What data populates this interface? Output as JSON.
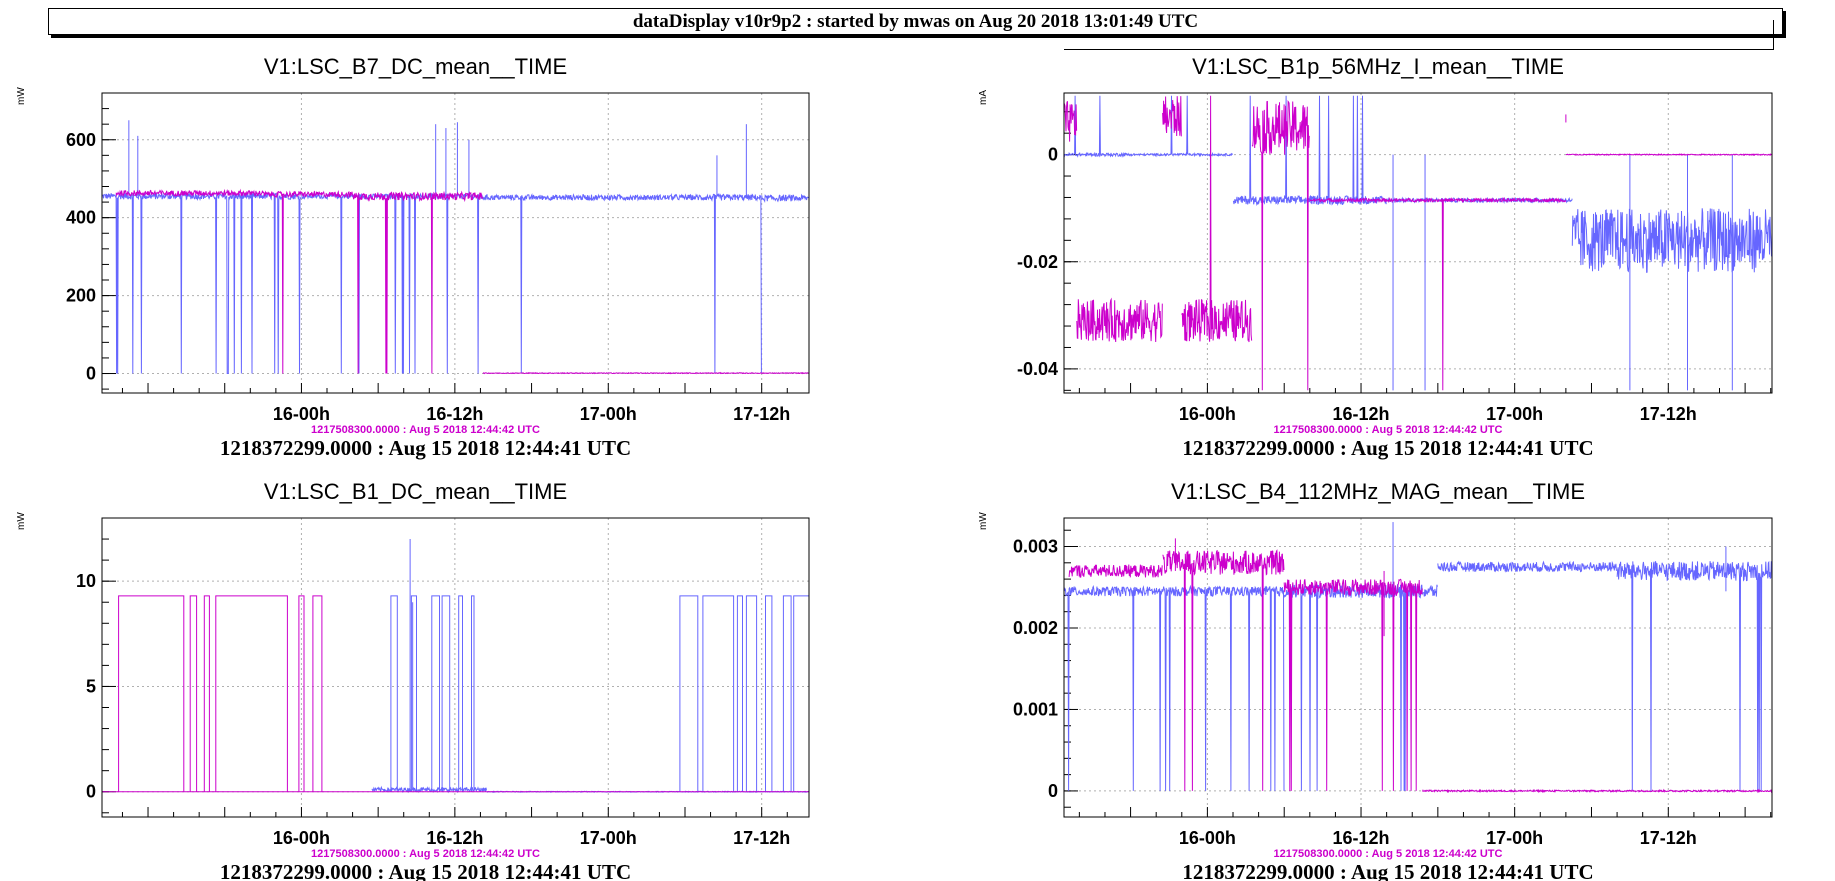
{
  "header": {
    "banner": "dataDisplay v10r9p2 : started by mwas on Aug 20 2018 13:01:49 UTC"
  },
  "colors": {
    "series_blue": "#6666ff",
    "series_magenta": "#cc00cc",
    "grid": "#b0b0b0",
    "axis": "#000000"
  },
  "chart_data": [
    {
      "type": "line",
      "title": "V1:LSC_B7_DC_mean__TIME",
      "ylabel": "mW",
      "xticks": [
        "16-00h",
        "16-12h",
        "17-00h",
        "17-12h"
      ],
      "xlim_hours": [
        -15.6,
        39.7
      ],
      "ylim": [
        -50,
        720
      ],
      "yticks": [
        0,
        200,
        400,
        600
      ],
      "grid": true,
      "time_offset": "1217508300.0000 : Aug  5 2018 12:44:42 UTC",
      "time_start": "1218372299.0000 : Aug 15 2018 12:44:41 UTC",
      "series": [
        {
          "color": "#6666ff",
          "segments": [
            {
              "x0": -15.6,
              "x1": 0.0,
              "base": 455,
              "noise": 8,
              "drop": 0.35,
              "low": 0
            },
            {
              "x0": 0.0,
              "x1": 3.0,
              "base": 455,
              "noise": 6,
              "drop": 0.18,
              "low": 0
            },
            {
              "x0": 3.0,
              "x1": 9.0,
              "base": 455,
              "noise": 6,
              "drop": 0.55,
              "low": 0
            },
            {
              "x0": 9.0,
              "x1": 14.0,
              "base": 455,
              "noise": 6,
              "drop": 0.2,
              "low": 0
            },
            {
              "x0": 14.0,
              "x1": 31.0,
              "base": 452,
              "noise": 7,
              "drop": 0.02,
              "low": 0
            },
            {
              "x0": 31.0,
              "x1": 36.0,
              "base": 452,
              "noise": 8,
              "drop": 0.5,
              "low": 0
            },
            {
              "x0": 36.0,
              "x1": 39.7,
              "base": 450,
              "noise": 8,
              "drop": 0.05,
              "low": 0
            }
          ],
          "spikes": [
            {
              "x": -13.5,
              "y": 650
            },
            {
              "x": -12.8,
              "y": 610
            },
            {
              "x": 10.5,
              "y": 640
            },
            {
              "x": 11.3,
              "y": 630
            },
            {
              "x": 12.2,
              "y": 645
            },
            {
              "x": 13.1,
              "y": 600
            },
            {
              "x": 32.5,
              "y": 560
            },
            {
              "x": 34.8,
              "y": 640
            }
          ]
        },
        {
          "color": "#cc00cc",
          "segments": [
            {
              "x0": -14.5,
              "x1": -3.0,
              "base": 463,
              "noise": 7,
              "drop": 0.02,
              "low": 0
            },
            {
              "x0": -3.0,
              "x1": 4.0,
              "base": 460,
              "noise": 7,
              "drop": 0.3,
              "low": 0
            },
            {
              "x0": 4.0,
              "x1": 14.2,
              "base": 455,
              "noise": 10,
              "drop": 0.25,
              "low": 0
            },
            {
              "x0": 14.2,
              "x1": 39.7,
              "base": 1,
              "noise": 1,
              "drop": 0,
              "low": 0
            }
          ],
          "spikes": []
        }
      ]
    },
    {
      "type": "line",
      "title": "V1:LSC_B1p_56MHz_I_mean__TIME",
      "ylabel": "mA",
      "xticks": [
        "16-00h",
        "16-12h",
        "17-00h",
        "17-12h"
      ],
      "xlim_hours": [
        -11.2,
        44.1
      ],
      "ylim": [
        -0.0445,
        0.0115
      ],
      "yticks": [
        0,
        -0.02,
        -0.04
      ],
      "ytick_labels": [
        "0",
        "-0.02",
        "-0.04"
      ],
      "grid": true,
      "time_offset": "1217508300.0000 : Aug  5 2018 12:44:42 UTC",
      "time_start": "1218372299.0000 : Aug 15 2018 12:44:41 UTC",
      "series": [
        {
          "color": "#6666ff",
          "segments": [
            {
              "x0": -11.2,
              "x1": -6.0,
              "base": 0.0,
              "noise": 0.0003,
              "drop": 0.3,
              "low": 0.011
            },
            {
              "x0": -6.0,
              "x1": 2.0,
              "base": 0.0,
              "noise": 0.0002,
              "drop": 0.05,
              "low": 0.011
            },
            {
              "x0": 2.0,
              "x1": 14.0,
              "base": -0.0085,
              "noise": 0.0008,
              "drop": 0.25,
              "low": 0.011
            },
            {
              "x0": 14.0,
              "x1": 28.5,
              "base": -0.0085,
              "noise": 0.0004,
              "drop": 0.05,
              "low": -0.04
            },
            {
              "x0": 28.5,
              "x1": 44.1,
              "base": -0.016,
              "noise": 0.006,
              "drop": 0.1,
              "low": 0.011
            }
          ],
          "spikes": [
            {
              "x": 14.5,
              "y": -0.044
            },
            {
              "x": 17.0,
              "y": -0.044
            },
            {
              "x": 33.0,
              "y": -0.044
            },
            {
              "x": 37.5,
              "y": -0.044
            },
            {
              "x": 41.0,
              "y": -0.044
            }
          ]
        },
        {
          "color": "#cc00cc",
          "segments": [
            {
              "x0": -11.2,
              "x1": -10.2,
              "base": 0.006,
              "noise": 0.004,
              "drop": 0.2,
              "low": -0.04
            },
            {
              "x0": -10.2,
              "x1": -3.5,
              "base": -0.031,
              "noise": 0.004,
              "drop": 0.02,
              "low": 0.011
            },
            {
              "x0": -3.5,
              "x1": -2.0,
              "base": 0.007,
              "noise": 0.004,
              "drop": 0.3,
              "low": -0.044
            },
            {
              "x0": -2.0,
              "x1": 3.5,
              "base": -0.031,
              "noise": 0.004,
              "drop": 0.02,
              "low": 0.011
            },
            {
              "x0": 3.5,
              "x1": 8.0,
              "base": 0.005,
              "noise": 0.005,
              "drop": 0.3,
              "low": -0.044
            },
            {
              "x0": 8.0,
              "x1": 28.0,
              "base": -0.0085,
              "noise": 0.0003,
              "drop": 0.03,
              "low": -0.044
            },
            {
              "x0": 28.0,
              "x1": 44.1,
              "base": 0.0,
              "noise": 0.0001,
              "drop": 0,
              "low": 0
            }
          ],
          "spikes": [
            {
              "x": 28.0,
              "y": 0.0075
            }
          ]
        }
      ]
    },
    {
      "type": "line",
      "title": "V1:LSC_B1_DC_mean__TIME",
      "ylabel": "mW",
      "xticks": [
        "16-00h",
        "16-12h",
        "17-00h",
        "17-12h"
      ],
      "xlim_hours": [
        -15.6,
        39.7
      ],
      "ylim": [
        -1.2,
        13.0
      ],
      "yticks": [
        0,
        5,
        10
      ],
      "grid": true,
      "time_offset": "1217508300.0000 : Aug  5 2018 12:44:42 UTC",
      "time_start": "1218372299.0000 : Aug 15 2018 12:44:41 UTC",
      "series": [
        {
          "color": "#6666ff",
          "segments": [
            {
              "x0": 5.5,
              "x1": 8.0,
              "base": 0.1,
              "noise": 0.1,
              "drop": 0,
              "low": 0
            },
            {
              "x0": 8.0,
              "x1": 14.5,
              "base": 0.1,
              "noise": 0.1,
              "drop": 0,
              "low": 0
            },
            {
              "x0": 14.5,
              "x1": 39.7,
              "base": 0.0,
              "noise": 0.02,
              "drop": 0,
              "low": 0
            }
          ],
          "square": [
            {
              "x0": 7.0,
              "x1": 7.5
            },
            {
              "x0": 8.6,
              "x1": 9.0
            },
            {
              "x0": 10.2,
              "x1": 10.8
            },
            {
              "x0": 11.0,
              "x1": 11.6
            },
            {
              "x0": 12.3,
              "x1": 12.6
            },
            {
              "x0": 13.3,
              "x1": 13.5
            },
            {
              "x0": 29.6,
              "x1": 31.0
            },
            {
              "x0": 31.4,
              "x1": 33.8
            },
            {
              "x0": 34.1,
              "x1": 34.5
            },
            {
              "x0": 34.8,
              "x1": 35.6
            },
            {
              "x0": 36.3,
              "x1": 36.8
            },
            {
              "x0": 37.7,
              "x1": 38.3
            },
            {
              "x0": 38.5,
              "x1": 39.7
            }
          ],
          "high": 9.3,
          "spikes": [
            {
              "x": 8.5,
              "y": 12.0
            },
            {
              "x": 8.7,
              "y": 9.0
            }
          ]
        },
        {
          "color": "#cc00cc",
          "segments": [
            {
              "x0": -15.6,
              "x1": 39.7,
              "base": 0.0,
              "noise": 0.0,
              "drop": 0,
              "low": 0
            }
          ],
          "square": [
            {
              "x0": -14.3,
              "x1": -9.2
            },
            {
              "x0": -8.7,
              "x1": -8.2
            },
            {
              "x0": -7.6,
              "x1": -7.2
            },
            {
              "x0": -6.7,
              "x1": -1.1
            },
            {
              "x0": -0.2,
              "x1": 0.2
            },
            {
              "x0": 0.9,
              "x1": 1.6
            }
          ],
          "high": 9.3,
          "spikes": []
        }
      ]
    },
    {
      "type": "line",
      "title": "V1:LSC_B4_112MHz_MAG_mean__TIME",
      "ylabel": "mW",
      "xticks": [
        "16-00h",
        "16-12h",
        "17-00h",
        "17-12h"
      ],
      "xlim_hours": [
        -11.2,
        44.1
      ],
      "ylim": [
        -0.00032,
        0.00335
      ],
      "yticks": [
        0,
        0.001,
        0.002,
        0.003
      ],
      "ytick_labels": [
        "0",
        "0.001",
        "0.002",
        "0.003"
      ],
      "grid": true,
      "time_offset": "1217508300.0000 : Aug  5 2018 12:44:42 UTC",
      "time_start": "1218372299.0000 : Aug 15 2018 12:44:41 UTC",
      "series": [
        {
          "color": "#6666ff",
          "segments": [
            {
              "x0": -11.2,
              "x1": 6.0,
              "base": 0.00245,
              "noise": 6e-05,
              "drop": 0.25,
              "low": 0
            },
            {
              "x0": 6.0,
              "x1": 18.0,
              "base": 0.00245,
              "noise": 8e-05,
              "drop": 0.35,
              "low": 0
            },
            {
              "x0": 18.0,
              "x1": 32.0,
              "base": 0.00275,
              "noise": 6e-05,
              "drop": 0.02,
              "low": 0
            },
            {
              "x0": 32.0,
              "x1": 44.1,
              "base": 0.0027,
              "noise": 0.00012,
              "drop": 0.3,
              "low": 0
            }
          ],
          "spikes": [
            {
              "x": 14.5,
              "y": 0.0033
            },
            {
              "x": 40.5,
              "y": 0.003
            }
          ]
        },
        {
          "color": "#cc00cc",
          "segments": [
            {
              "x0": -10.8,
              "x1": -3.5,
              "base": 0.0027,
              "noise": 8e-05,
              "drop": 0.05,
              "low": 0
            },
            {
              "x0": -3.5,
              "x1": 6.0,
              "base": 0.0028,
              "noise": 0.00015,
              "drop": 0.25,
              "low": 0
            },
            {
              "x0": 6.0,
              "x1": 16.8,
              "base": 0.0025,
              "noise": 0.0001,
              "drop": 0.35,
              "low": 0
            },
            {
              "x0": 16.8,
              "x1": 44.1,
              "base": 0.0,
              "noise": 1e-05,
              "drop": 0,
              "low": 0
            }
          ],
          "spikes": [
            {
              "x": -2.5,
              "y": 0.0031
            },
            {
              "x": 13.8,
              "y": 0.0019
            }
          ]
        }
      ]
    }
  ]
}
